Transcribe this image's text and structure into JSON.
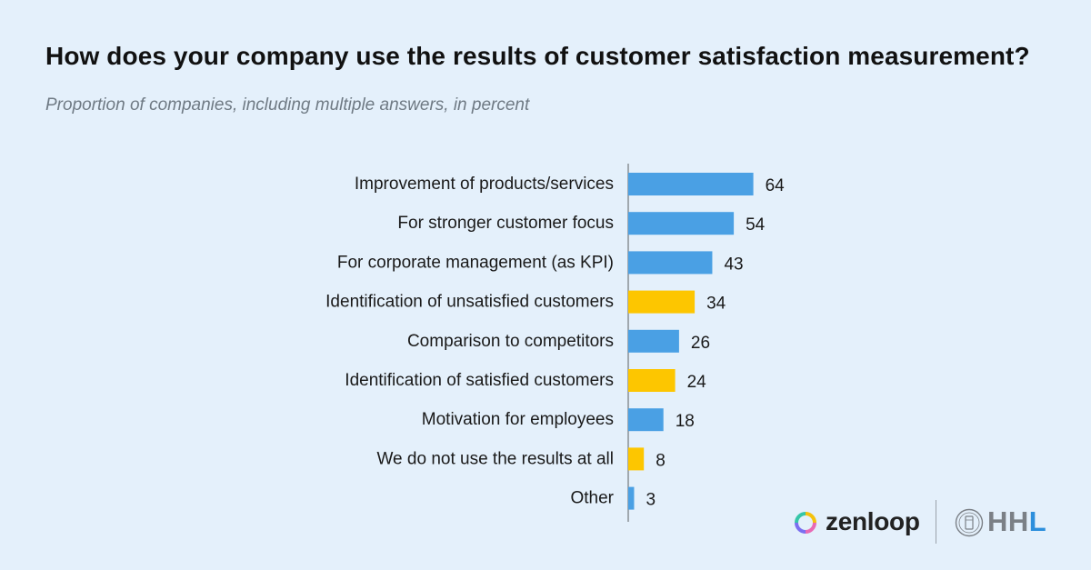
{
  "title": "How does your company use the results of customer satisfaction measurement?",
  "subtitle": "Proportion of companies, including multiple answers, in percent",
  "colors": {
    "blue": "#4aa0e4",
    "yellow": "#fdc600",
    "background": "#e4f0fb",
    "axis": "#8a8f94"
  },
  "chart_data": {
    "type": "bar",
    "orientation": "horizontal",
    "categories": [
      "Improvement of products/services",
      "For stronger customer focus",
      "For corporate management (as KPI)",
      "Identification of unsatisfied customers",
      "Comparison to competitors",
      "Identification of satisfied customers",
      "Motivation for employees",
      "We do not use the results at all",
      "Other"
    ],
    "values": [
      64,
      54,
      43,
      34,
      26,
      24,
      18,
      8,
      3
    ],
    "highlight": [
      false,
      false,
      false,
      true,
      false,
      true,
      false,
      true,
      false
    ],
    "xlim": [
      0,
      100
    ],
    "grid": false,
    "legend": "none"
  },
  "logos": {
    "zenloop": "zenloop",
    "hhl": "HHL"
  }
}
